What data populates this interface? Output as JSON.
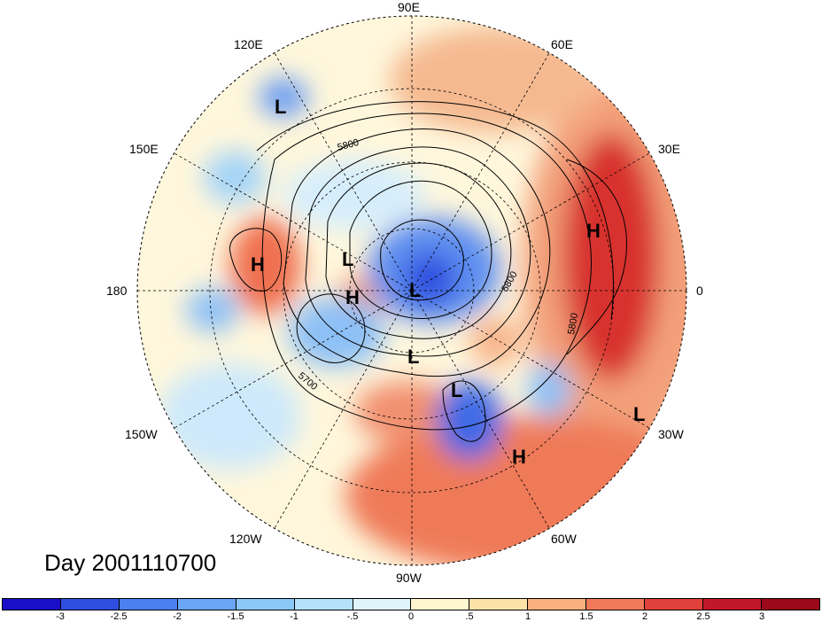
{
  "map": {
    "title": "Day 2001110700",
    "projection": "north-polar-stereographic",
    "longitude_labels": [
      "90E",
      "60E",
      "30E",
      "0",
      "30W",
      "60W",
      "90W",
      "120W",
      "150W",
      "180",
      "150E",
      "120E"
    ],
    "contour_labels": [
      "5800",
      "5700",
      "5800",
      "5800"
    ],
    "pressure_centers": [
      {
        "type": "H"
      },
      {
        "type": "H"
      },
      {
        "type": "H"
      },
      {
        "type": "H"
      },
      {
        "type": "L"
      },
      {
        "type": "L"
      },
      {
        "type": "L"
      },
      {
        "type": "L"
      },
      {
        "type": "L"
      },
      {
        "type": "L"
      }
    ]
  },
  "colorbar": {
    "ticks": [
      "-3",
      "-2.5",
      "-2",
      "-1.5",
      "-1",
      "-.5",
      "0",
      ".5",
      "1",
      "1.5",
      "2",
      "2.5",
      "3"
    ],
    "colors": [
      "#1a0ec8",
      "#2f4fe0",
      "#4a80ef",
      "#6aa6f5",
      "#8cc8f7",
      "#b4e2fa",
      "#e0f4fc",
      "#fff6d0",
      "#fde2a8",
      "#f8b07e",
      "#f17a5a",
      "#e0413a",
      "#c0182a",
      "#9b0a1a"
    ]
  }
}
